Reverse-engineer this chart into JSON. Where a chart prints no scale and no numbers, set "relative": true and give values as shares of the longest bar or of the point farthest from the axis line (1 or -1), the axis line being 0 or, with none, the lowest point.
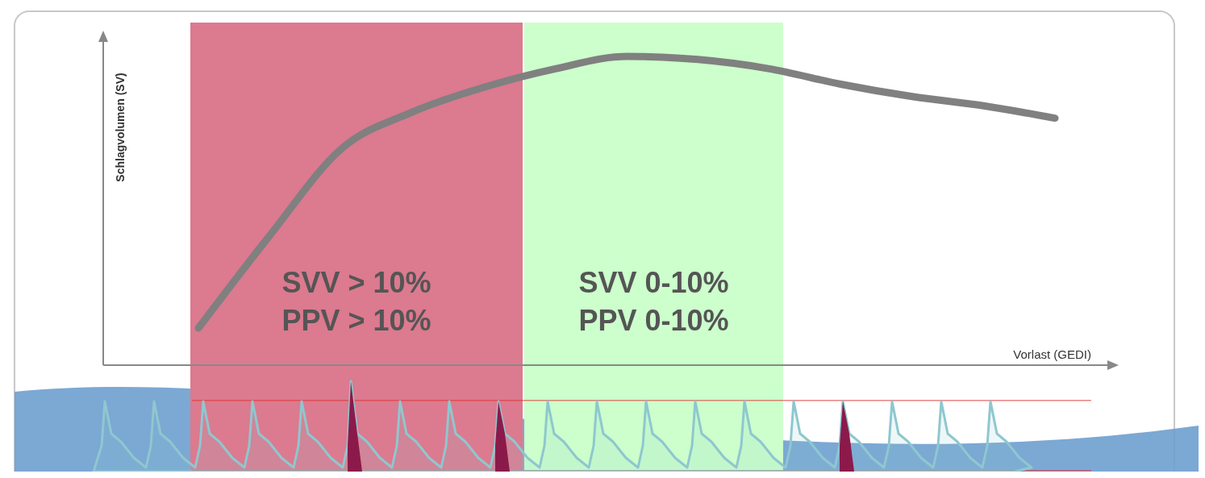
{
  "chart_data": {
    "type": "line",
    "relative": true,
    "xlabel": "Vorlast (GEDI)",
    "ylabel": "Schlagvolumen (SV)",
    "categories": [
      null,
      null,
      null,
      null,
      null,
      null,
      null,
      null,
      null,
      null,
      null,
      null,
      null
    ],
    "series": [
      {
        "color": "#808080",
        "values": [
          0.12,
          0.42,
          0.7,
          0.82,
          0.9,
          0.96,
          1.0,
          0.99,
          0.96,
          0.91,
          0.87,
          0.84,
          0.8
        ]
      }
    ],
    "annotations": [
      "SVV > 10%\nPPV > 10%",
      "SVV 0-10%\nPPV 0-10%"
    ],
    "marker": "none"
  }
}
